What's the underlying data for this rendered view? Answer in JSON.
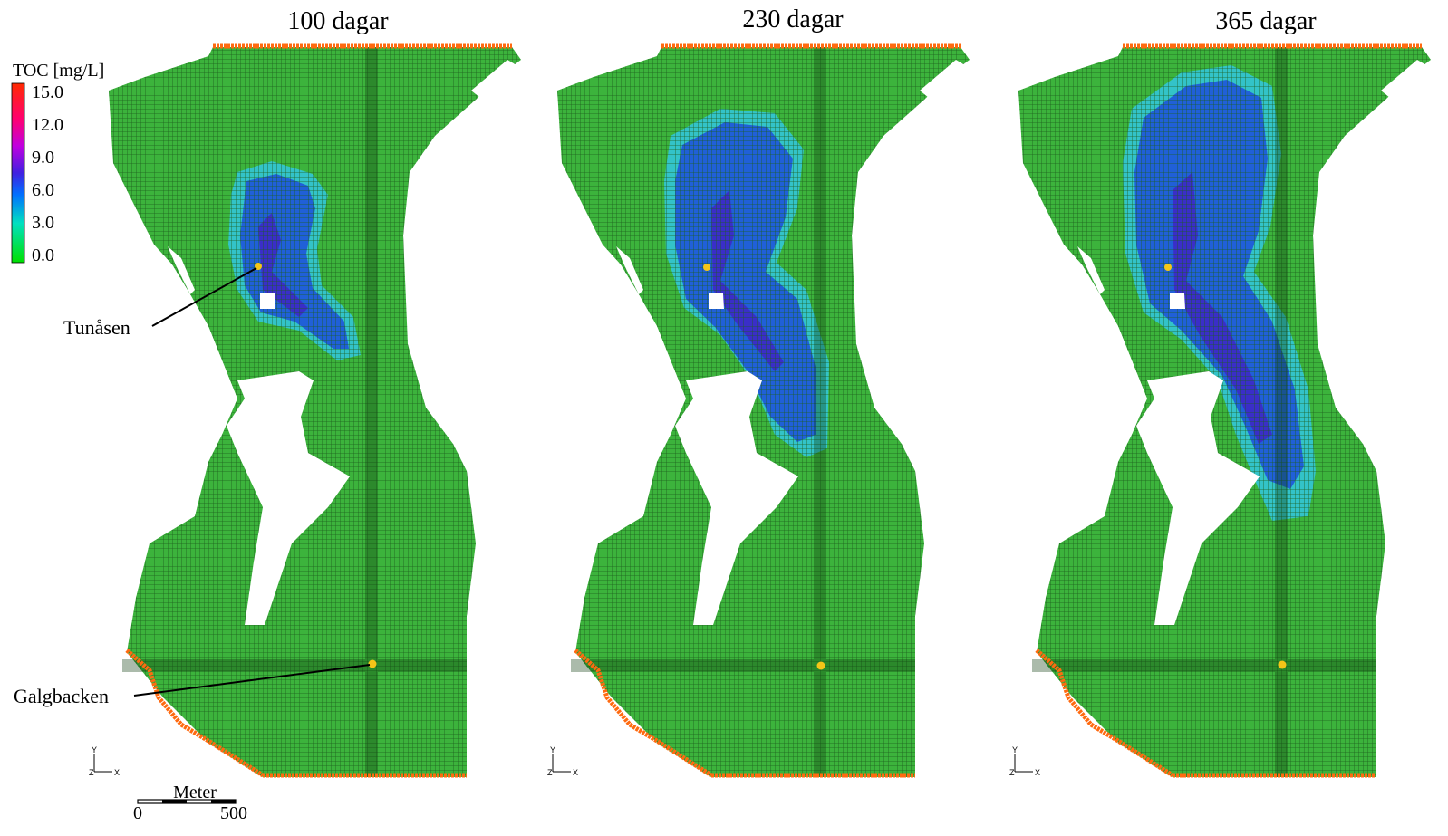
{
  "panels": [
    {
      "title": "100 dagar"
    },
    {
      "title": "230 dagar"
    },
    {
      "title": "365 dagar"
    }
  ],
  "legend": {
    "title": "TOC [mg/L]",
    "labels": [
      "15.0",
      "12.0",
      "9.0",
      "6.0",
      "3.0",
      "0.0"
    ]
  },
  "wells": [
    "Tunåsen",
    "Galgbacken"
  ],
  "scale_bar": {
    "label": "Meter",
    "ticks": [
      "0",
      "500"
    ]
  },
  "axis_triad": {
    "y": "Y",
    "z": "Z",
    "x": "X"
  }
}
